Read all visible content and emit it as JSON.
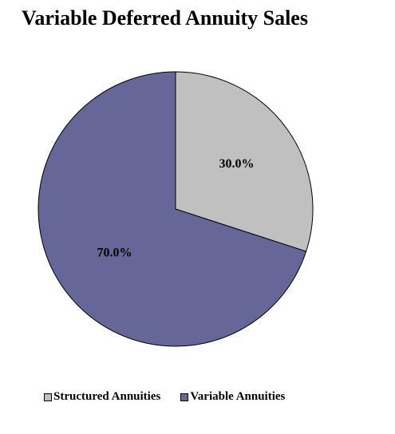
{
  "chart_data": {
    "type": "pie",
    "title": "Variable Deferred Annuity Sales",
    "categories": [
      "Structured Annuities",
      "Variable Annuities"
    ],
    "values": [
      30.0,
      70.0
    ],
    "data_labels": [
      "30.0%",
      "70.0%"
    ],
    "colors": [
      "#c0c0c0",
      "#666699"
    ],
    "legend": {
      "position": "bottom",
      "entries": [
        "Structured Annuities",
        "Variable Annuities"
      ]
    }
  }
}
